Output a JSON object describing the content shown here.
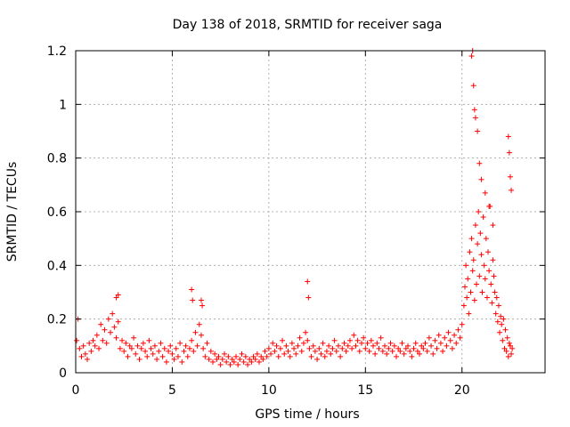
{
  "chart_data": {
    "type": "scatter",
    "title": "Day 138 of 2018, SRMTID for receiver saga",
    "xlabel": "GPS time / hours",
    "ylabel": "SRMTID / TECUs",
    "xlim": [
      0,
      24.3
    ],
    "ylim": [
      0,
      1.2
    ],
    "xticks": [
      0,
      5,
      10,
      15,
      20
    ],
    "xtick_labels": [
      "0",
      "5",
      "10",
      "15",
      "20"
    ],
    "yticks": [
      0,
      0.2,
      0.4,
      0.6,
      0.8,
      1.0,
      1.2
    ],
    "ytick_labels": [
      "0",
      "0.2",
      "0.4",
      "0.6",
      "0.8",
      "1",
      "1.2"
    ],
    "grid": true,
    "marker": "plus",
    "series": [
      {
        "name": "SRMTID",
        "color": "#ff0000",
        "x": [
          0.05,
          0.12,
          0.2,
          0.3,
          0.4,
          0.5,
          0.6,
          0.7,
          0.8,
          0.9,
          1.0,
          1.1,
          1.2,
          1.3,
          1.4,
          1.5,
          1.6,
          1.7,
          1.8,
          1.9,
          2.0,
          2.1,
          2.2,
          2.3,
          2.4,
          2.5,
          2.6,
          2.7,
          2.8,
          2.9,
          3.0,
          3.1,
          3.2,
          3.3,
          3.4,
          3.5,
          3.6,
          3.7,
          3.8,
          3.9,
          4.0,
          4.1,
          4.2,
          4.3,
          4.4,
          4.5,
          4.6,
          4.7,
          4.8,
          4.9,
          5.0,
          5.1,
          5.2,
          5.3,
          5.4,
          5.5,
          5.6,
          5.7,
          5.8,
          5.9,
          6.0,
          6.1,
          6.2,
          6.3,
          6.4,
          6.5,
          6.6,
          6.7,
          6.8,
          6.9,
          7.0,
          7.1,
          7.2,
          7.3,
          7.4,
          7.5,
          7.6,
          7.7,
          7.8,
          7.9,
          8.0,
          8.1,
          8.2,
          8.3,
          8.4,
          8.5,
          8.6,
          8.7,
          8.8,
          8.9,
          9.0,
          9.1,
          9.2,
          9.3,
          9.4,
          9.5,
          9.6,
          9.7,
          9.8,
          9.9,
          10.0,
          10.1,
          10.2,
          10.3,
          10.4,
          10.5,
          10.6,
          10.7,
          10.8,
          10.9,
          11.0,
          11.1,
          11.2,
          11.3,
          11.4,
          11.5,
          11.6,
          11.7,
          11.8,
          11.9,
          12.0,
          12.1,
          12.2,
          12.3,
          12.4,
          12.5,
          12.6,
          12.7,
          12.8,
          12.9,
          13.0,
          13.1,
          13.2,
          13.3,
          13.4,
          13.5,
          13.6,
          13.7,
          13.8,
          13.9,
          14.0,
          14.1,
          14.2,
          14.3,
          14.4,
          14.5,
          14.6,
          14.7,
          14.8,
          14.9,
          15.0,
          15.1,
          15.2,
          15.3,
          15.4,
          15.5,
          15.6,
          15.7,
          15.8,
          15.9,
          16.0,
          16.1,
          16.2,
          16.3,
          16.4,
          16.5,
          16.6,
          16.7,
          16.8,
          16.9,
          17.0,
          17.1,
          17.2,
          17.3,
          17.4,
          17.5,
          17.6,
          17.7,
          17.8,
          17.9,
          18.0,
          18.1,
          18.2,
          18.3,
          18.4,
          18.5,
          18.6,
          18.7,
          18.8,
          18.9,
          19.0,
          19.1,
          19.2,
          19.3,
          19.4,
          19.5,
          19.6,
          19.7,
          19.8,
          19.9,
          20.0,
          20.1,
          20.15,
          20.2,
          20.25,
          20.3,
          20.35,
          20.4,
          20.45,
          20.5,
          20.55,
          20.6,
          20.65,
          20.7,
          20.75,
          20.8,
          20.85,
          20.9,
          20.95,
          21.0,
          21.05,
          21.1,
          21.15,
          21.2,
          21.25,
          21.3,
          21.35,
          21.4,
          21.45,
          21.5,
          21.55,
          21.6,
          21.65,
          21.7,
          21.75,
          21.8,
          21.85,
          21.9,
          21.95,
          22.0,
          22.05,
          22.1,
          22.15,
          22.2,
          22.25,
          22.3,
          22.35,
          22.4,
          22.45,
          22.5,
          22.55,
          22.6,
          2.1,
          2.2,
          6.0,
          6.05,
          6.5,
          6.55,
          12.0,
          12.05,
          20.5,
          20.55,
          20.6,
          20.65,
          20.7,
          20.8,
          20.9,
          21.0,
          21.2,
          21.4,
          21.6,
          22.4,
          22.45,
          22.5,
          22.55
        ],
        "y": [
          0.12,
          0.2,
          0.09,
          0.06,
          0.1,
          0.07,
          0.05,
          0.11,
          0.08,
          0.12,
          0.1,
          0.14,
          0.09,
          0.18,
          0.12,
          0.16,
          0.11,
          0.2,
          0.15,
          0.22,
          0.17,
          0.13,
          0.19,
          0.09,
          0.12,
          0.08,
          0.11,
          0.06,
          0.1,
          0.09,
          0.13,
          0.07,
          0.1,
          0.05,
          0.09,
          0.11,
          0.08,
          0.06,
          0.12,
          0.09,
          0.07,
          0.1,
          0.05,
          0.08,
          0.11,
          0.06,
          0.09,
          0.04,
          0.08,
          0.1,
          0.07,
          0.05,
          0.09,
          0.06,
          0.11,
          0.04,
          0.08,
          0.1,
          0.06,
          0.09,
          0.12,
          0.08,
          0.15,
          0.1,
          0.18,
          0.14,
          0.09,
          0.06,
          0.11,
          0.05,
          0.08,
          0.04,
          0.07,
          0.05,
          0.06,
          0.03,
          0.05,
          0.07,
          0.04,
          0.06,
          0.03,
          0.05,
          0.04,
          0.06,
          0.03,
          0.05,
          0.07,
          0.04,
          0.06,
          0.03,
          0.05,
          0.04,
          0.06,
          0.05,
          0.07,
          0.04,
          0.06,
          0.05,
          0.08,
          0.06,
          0.09,
          0.07,
          0.11,
          0.08,
          0.1,
          0.06,
          0.09,
          0.12,
          0.07,
          0.1,
          0.08,
          0.06,
          0.11,
          0.09,
          0.07,
          0.1,
          0.13,
          0.08,
          0.11,
          0.15,
          0.12,
          0.09,
          0.06,
          0.1,
          0.08,
          0.05,
          0.09,
          0.07,
          0.11,
          0.06,
          0.08,
          0.1,
          0.07,
          0.09,
          0.12,
          0.08,
          0.1,
          0.06,
          0.09,
          0.11,
          0.08,
          0.1,
          0.12,
          0.09,
          0.14,
          0.1,
          0.12,
          0.08,
          0.11,
          0.13,
          0.09,
          0.11,
          0.08,
          0.12,
          0.1,
          0.07,
          0.11,
          0.09,
          0.13,
          0.08,
          0.1,
          0.07,
          0.09,
          0.11,
          0.08,
          0.1,
          0.06,
          0.09,
          0.08,
          0.11,
          0.07,
          0.09,
          0.1,
          0.08,
          0.06,
          0.09,
          0.11,
          0.08,
          0.07,
          0.1,
          0.09,
          0.11,
          0.08,
          0.13,
          0.1,
          0.07,
          0.12,
          0.09,
          0.14,
          0.11,
          0.08,
          0.13,
          0.1,
          0.15,
          0.12,
          0.09,
          0.14,
          0.11,
          0.16,
          0.13,
          0.18,
          0.25,
          0.32,
          0.4,
          0.28,
          0.35,
          0.22,
          0.45,
          0.3,
          0.5,
          0.38,
          0.42,
          0.27,
          0.55,
          0.33,
          0.48,
          0.6,
          0.36,
          0.52,
          0.44,
          0.3,
          0.58,
          0.4,
          0.35,
          0.5,
          0.28,
          0.45,
          0.38,
          0.62,
          0.33,
          0.26,
          0.42,
          0.36,
          0.3,
          0.22,
          0.28,
          0.19,
          0.25,
          0.15,
          0.21,
          0.18,
          0.12,
          0.2,
          0.09,
          0.16,
          0.08,
          0.13,
          0.06,
          0.11,
          0.1,
          0.07,
          0.09,
          0.28,
          0.29,
          0.31,
          0.27,
          0.27,
          0.25,
          0.34,
          0.28,
          1.18,
          1.2,
          1.07,
          0.98,
          0.95,
          0.9,
          0.78,
          0.72,
          0.67,
          0.62,
          0.55,
          0.88,
          0.82,
          0.73,
          0.68
        ]
      }
    ]
  }
}
